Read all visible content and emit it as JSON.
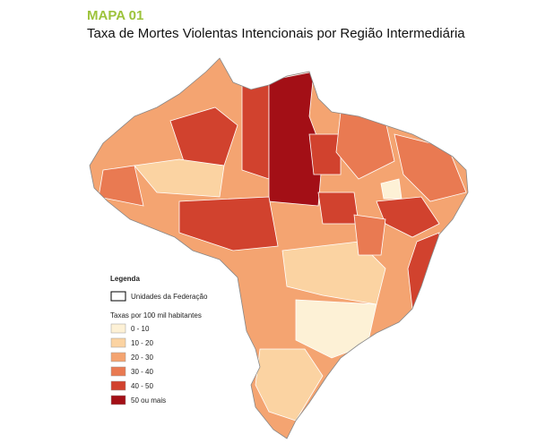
{
  "header": {
    "title": "MAPA 01",
    "subtitle": "Taxa de Mortes Violentas Intencionais por Região Intermediária"
  },
  "legend": {
    "title": "Legenda",
    "boundary": "Unidades da Federação",
    "scale_title": "Taxas por 100 mil habitantes",
    "classes": [
      {
        "label": "0 - 10",
        "color": "#fdf1d6"
      },
      {
        "label": "10 - 20",
        "color": "#fbd3a2"
      },
      {
        "label": "20 - 30",
        "color": "#f4a471"
      },
      {
        "label": "30 - 40",
        "color": "#e97a52"
      },
      {
        "label": "40 - 50",
        "color": "#d1422e"
      },
      {
        "label": "50 ou mais",
        "color": "#a30f16"
      }
    ]
  }
}
